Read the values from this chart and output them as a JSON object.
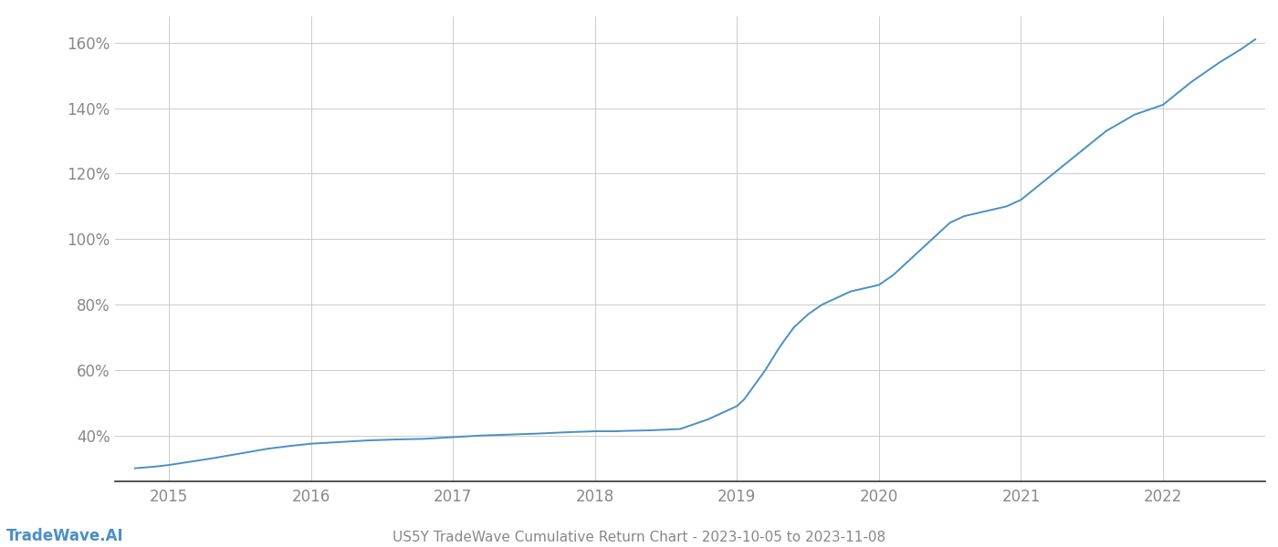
{
  "title": "US5Y TradeWave Cumulative Return Chart - 2023-10-05 to 2023-11-08",
  "watermark": "TradeWave.AI",
  "line_color": "#4a90c4",
  "background_color": "#ffffff",
  "grid_color": "#cccccc",
  "x_years": [
    2015,
    2016,
    2017,
    2018,
    2019,
    2020,
    2021,
    2022
  ],
  "y_ticks": [
    40,
    60,
    80,
    100,
    120,
    140,
    160
  ],
  "xlim_start": 2014.62,
  "xlim_end": 2022.72,
  "ylim_bottom": 26,
  "ylim_top": 168,
  "data_x": [
    2014.76,
    2014.9,
    2015.0,
    2015.15,
    2015.3,
    2015.5,
    2015.7,
    2015.85,
    2016.0,
    2016.2,
    2016.4,
    2016.6,
    2016.8,
    2017.0,
    2017.2,
    2017.4,
    2017.6,
    2017.8,
    2018.0,
    2018.05,
    2018.1,
    2018.15,
    2018.2,
    2018.3,
    2018.4,
    2018.5,
    2018.6,
    2018.7,
    2018.8,
    2018.9,
    2018.95,
    2019.0,
    2019.05,
    2019.1,
    2019.2,
    2019.3,
    2019.4,
    2019.5,
    2019.6,
    2019.7,
    2019.8,
    2019.9,
    2020.0,
    2020.1,
    2020.2,
    2020.3,
    2020.4,
    2020.5,
    2020.6,
    2020.7,
    2020.8,
    2020.9,
    2021.0,
    2021.2,
    2021.4,
    2021.6,
    2021.8,
    2022.0,
    2022.2,
    2022.4,
    2022.55,
    2022.65
  ],
  "data_y": [
    30,
    30.5,
    31,
    32,
    33,
    34.5,
    36,
    36.8,
    37.5,
    38,
    38.5,
    38.8,
    39,
    39.5,
    40,
    40.3,
    40.6,
    41,
    41.3,
    41.3,
    41.3,
    41.3,
    41.4,
    41.5,
    41.6,
    41.8,
    42.0,
    43.5,
    45,
    47,
    48,
    49,
    51,
    54,
    60,
    67,
    73,
    77,
    80,
    82,
    84,
    85,
    86,
    89,
    93,
    97,
    101,
    105,
    107,
    108,
    109,
    110,
    112,
    119,
    126,
    133,
    138,
    141,
    148,
    154,
    158,
    161
  ]
}
